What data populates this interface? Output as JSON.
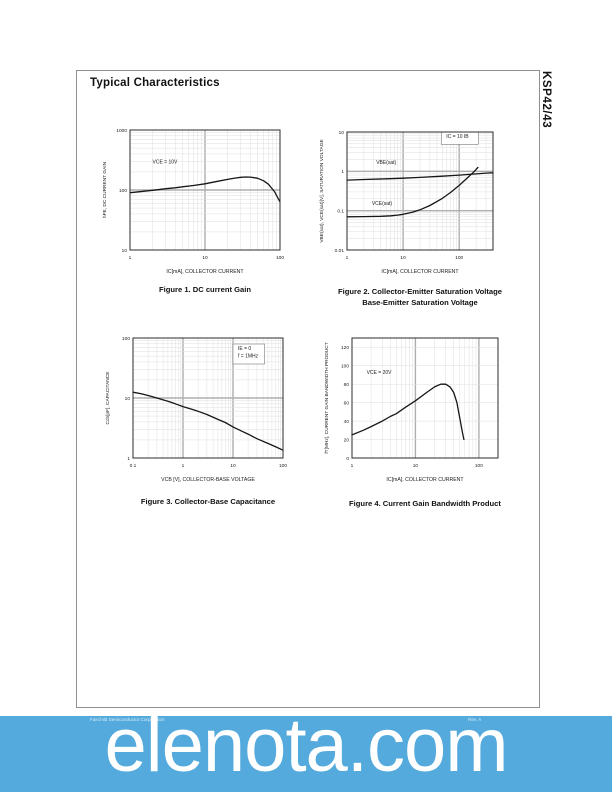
{
  "page": {
    "title": "Typical Characteristics",
    "side_label": "KSP42/43"
  },
  "watermark": {
    "text": "elenota.com",
    "background_color": "#54aadc",
    "text_color": "#ffffff"
  },
  "footer": {
    "left_fragment": "Fairchild Semiconductor Corporation",
    "right_fragment": "Rev. A"
  },
  "chart_data": [
    {
      "type": "line",
      "caption": "Figure 1. DC current Gain",
      "xlabel": "IC[mA], COLLECTOR CURRENT",
      "ylabel": "hFE, DC CURRENT GAIN",
      "xscale": "log",
      "xmin": 1,
      "xmax": 100,
      "xticks": [
        1,
        10,
        100
      ],
      "yscale": "log",
      "ymin": 10,
      "ymax": 1000,
      "yticks": [
        10,
        100,
        1000
      ],
      "grid": true,
      "annotations": [
        {
          "lines": [
            "VCE = 10V"
          ],
          "fx": 0.15,
          "fy": 0.28,
          "box": false
        }
      ],
      "series": [
        {
          "name": "hFE",
          "points": [
            [
              1,
              90
            ],
            [
              1.5,
              95
            ],
            [
              2,
              99
            ],
            [
              3,
              105
            ],
            [
              4,
              109
            ],
            [
              5,
              113
            ],
            [
              7,
              119
            ],
            [
              10,
              127
            ],
            [
              15,
              140
            ],
            [
              20,
              150
            ],
            [
              25,
              158
            ],
            [
              30,
              163
            ],
            [
              35,
              165
            ],
            [
              40,
              164
            ],
            [
              50,
              157
            ],
            [
              60,
              143
            ],
            [
              70,
              125
            ],
            [
              85,
              93
            ],
            [
              100,
              63
            ]
          ]
        }
      ]
    },
    {
      "type": "line",
      "caption": "Figure 2. Collector-Emitter Saturation Voltage",
      "caption2": "Base-Emitter Saturation Voltage",
      "xlabel": "IC[mA], COLLECTOR CURRENT",
      "ylabel": "VBE(sat), VCE(sat)[V], SATURATION VOLTAGE",
      "xscale": "log",
      "xmin": 1,
      "xmax": 400,
      "xticks": [
        1,
        10,
        100
      ],
      "yscale": "log",
      "ymin": 0.01,
      "ymax": 10,
      "yticks": [
        0.01,
        0.1,
        1,
        10
      ],
      "grid": true,
      "annotations": [
        {
          "lines": [
            "IC = 10 IB"
          ],
          "fx": 0.68,
          "fy": 0.05,
          "box": true
        },
        {
          "lines": [
            "VBE(sat)"
          ],
          "fx": 0.2,
          "fy": 0.27,
          "box": false
        },
        {
          "lines": [
            "VCE(sat)"
          ],
          "fx": 0.17,
          "fy": 0.62,
          "box": false
        }
      ],
      "series": [
        {
          "name": "VBE(sat)",
          "points": [
            [
              1,
              0.6
            ],
            [
              2,
              0.62
            ],
            [
              5,
              0.645
            ],
            [
              10,
              0.67
            ],
            [
              20,
              0.7
            ],
            [
              50,
              0.75
            ],
            [
              100,
              0.8
            ],
            [
              200,
              0.86
            ],
            [
              300,
              0.9
            ],
            [
              400,
              0.92
            ]
          ]
        },
        {
          "name": "VCE(sat)",
          "points": [
            [
              1,
              0.07
            ],
            [
              2,
              0.0705
            ],
            [
              4,
              0.072
            ],
            [
              6,
              0.074
            ],
            [
              8,
              0.077
            ],
            [
              10,
              0.081
            ],
            [
              15,
              0.092
            ],
            [
              20,
              0.105
            ],
            [
              30,
              0.135
            ],
            [
              50,
              0.205
            ],
            [
              70,
              0.29
            ],
            [
              100,
              0.44
            ],
            [
              140,
              0.68
            ],
            [
              180,
              0.95
            ],
            [
              215,
              1.25
            ]
          ]
        }
      ]
    },
    {
      "type": "line",
      "caption": "Figure 3. Collector-Base Capacitance",
      "xlabel": "VCB [V], COLLECTOR-BASE VOLTAGE",
      "ylabel": "Ccb[pF], CAPACITANCE",
      "xscale": "log",
      "xmin": 0.1,
      "xmax": 100,
      "xticks": [
        0.1,
        1,
        10,
        100
      ],
      "yscale": "log",
      "ymin": 1,
      "ymax": 100,
      "yticks": [
        1,
        10,
        100
      ],
      "grid": true,
      "annotations": [
        {
          "lines": [
            "IE = 0",
            "f = 1MHz"
          ],
          "fx": 0.7,
          "fy": 0.1,
          "box": true
        }
      ],
      "series": [
        {
          "name": "Ccb",
          "points": [
            [
              0.1,
              12.5
            ],
            [
              0.15,
              11.7
            ],
            [
              0.2,
              11
            ],
            [
              0.3,
              10
            ],
            [
              0.5,
              8.8
            ],
            [
              0.7,
              8
            ],
            [
              1,
              7.2
            ],
            [
              1.5,
              6.5
            ],
            [
              2,
              6
            ],
            [
              3,
              5.3
            ],
            [
              5,
              4.4
            ],
            [
              7,
              3.9
            ],
            [
              10,
              3.3
            ],
            [
              15,
              2.8
            ],
            [
              20,
              2.5
            ],
            [
              30,
              2.1
            ],
            [
              50,
              1.75
            ],
            [
              70,
              1.55
            ],
            [
              100,
              1.35
            ]
          ]
        }
      ]
    },
    {
      "type": "line",
      "caption": "Figure 4. Current Gain Bandwidth Product",
      "xlabel": "IC[mA], COLLECTOR CURRENT",
      "ylabel": "fT[MHz], CURRENT GAIN BANDWIDTH PRODUCT",
      "xscale": "log",
      "xmin": 1,
      "xmax": 200,
      "xticks": [
        1,
        10,
        100
      ],
      "yscale": "linear",
      "ymin": 0,
      "ymax": 130,
      "yticks": [
        0,
        20,
        40,
        60,
        80,
        100,
        120
      ],
      "grid": true,
      "annotations": [
        {
          "lines": [
            "VCE = 20V"
          ],
          "fx": 0.1,
          "fy": 0.3,
          "box": false
        }
      ],
      "series": [
        {
          "name": "fT",
          "points": [
            [
              1,
              25
            ],
            [
              1.5,
              30
            ],
            [
              2,
              34
            ],
            [
              3,
              40
            ],
            [
              4,
              45
            ],
            [
              5,
              48
            ],
            [
              7,
              55
            ],
            [
              10,
              62
            ],
            [
              15,
              71
            ],
            [
              20,
              77
            ],
            [
              25,
              80
            ],
            [
              30,
              80
            ],
            [
              35,
              77
            ],
            [
              40,
              71
            ],
            [
              45,
              60
            ],
            [
              50,
              43
            ],
            [
              55,
              28
            ],
            [
              58,
              20
            ]
          ]
        }
      ]
    }
  ]
}
